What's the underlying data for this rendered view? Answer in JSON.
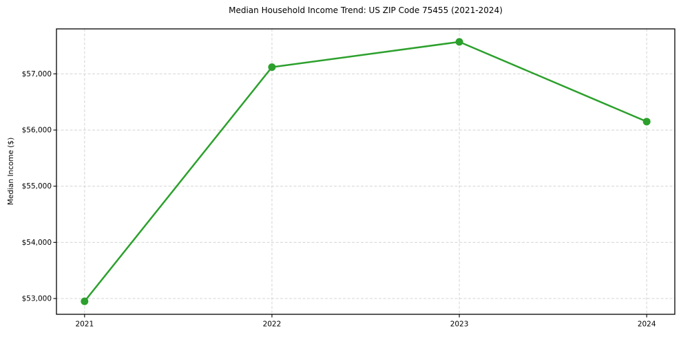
{
  "chart_data": {
    "type": "line",
    "title": "Median Household Income Trend: US ZIP Code 75455 (2021-2024)",
    "xlabel": "",
    "ylabel": "Median Income ($)",
    "x": [
      2021,
      2022,
      2023,
      2024
    ],
    "x_tick_labels": [
      "2021",
      "2022",
      "2023",
      "2024"
    ],
    "series": [
      {
        "name": "median-household-income",
        "values": [
          52950,
          57120,
          57570,
          56150
        ]
      }
    ],
    "y_ticks": [
      53000,
      54000,
      55000,
      56000,
      57000
    ],
    "y_tick_labels": [
      "$53,000",
      "$54,000",
      "$55,000",
      "$56,000",
      "$57,000"
    ],
    "xlim": [
      2020.85,
      2024.15
    ],
    "ylim": [
      52719,
      57801
    ],
    "grid": "dashed, both axes",
    "legend": "none",
    "marker": "circle"
  },
  "colors": {
    "line": "#2ca02c",
    "marker": "#2ca02c",
    "grid": "#d4d4d4",
    "spine": "#000000",
    "text": "#000000",
    "background": "#ffffff"
  }
}
